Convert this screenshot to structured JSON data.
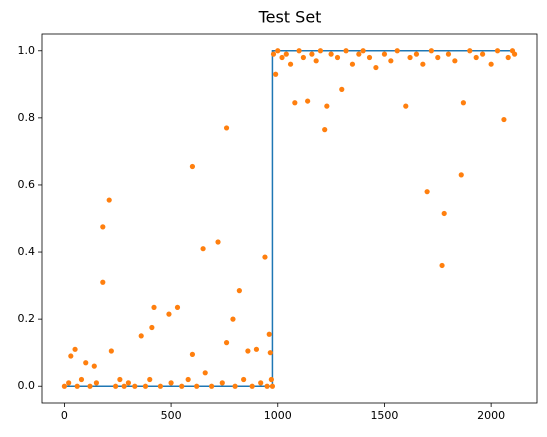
{
  "chart_data": {
    "type": "scatter",
    "title": "Test Set",
    "xlim": [
      -105,
      2215
    ],
    "ylim": [
      -0.05,
      1.05
    ],
    "xticks": [
      0,
      500,
      1000,
      1500,
      2000
    ],
    "yticks": [
      {
        "value": 0,
        "label": "0.0"
      },
      0.2,
      0.4,
      0.6,
      0.8,
      {
        "value": 1,
        "label": "1.0"
      }
    ],
    "line": {
      "color": "#1f77b4",
      "x": [
        0,
        975,
        975,
        2110
      ],
      "values": [
        0,
        0,
        1,
        1
      ]
    },
    "scatter": {
      "color": "#ff7f0e",
      "x": [
        0,
        20,
        30,
        50,
        60,
        80,
        100,
        120,
        140,
        150,
        180,
        180,
        210,
        220,
        240,
        260,
        280,
        300,
        330,
        360,
        380,
        400,
        410,
        420,
        450,
        490,
        500,
        530,
        550,
        580,
        600,
        600,
        620,
        650,
        660,
        690,
        720,
        740,
        760,
        760,
        790,
        800,
        820,
        840,
        860,
        880,
        900,
        920,
        940,
        950,
        960,
        965,
        970,
        975,
        980,
        990,
        1000,
        1020,
        1040,
        1060,
        1080,
        1100,
        1120,
        1140,
        1160,
        1180,
        1200,
        1220,
        1230,
        1250,
        1280,
        1300,
        1320,
        1350,
        1380,
        1400,
        1430,
        1460,
        1500,
        1530,
        1560,
        1600,
        1620,
        1650,
        1680,
        1700,
        1720,
        1750,
        1770,
        1780,
        1800,
        1830,
        1860,
        1870,
        1900,
        1930,
        1960,
        2000,
        2030,
        2060,
        2080,
        2100,
        2110
      ],
      "values": [
        0.0,
        0.01,
        0.09,
        0.11,
        0.0,
        0.02,
        0.07,
        0.0,
        0.06,
        0.01,
        0.31,
        0.475,
        0.555,
        0.105,
        0.0,
        0.02,
        0.0,
        0.01,
        0.0,
        0.15,
        0.0,
        0.02,
        0.175,
        0.235,
        0.0,
        0.215,
        0.01,
        0.235,
        0.0,
        0.02,
        0.655,
        0.095,
        0.0,
        0.41,
        0.04,
        0.0,
        0.43,
        0.01,
        0.77,
        0.13,
        0.2,
        0.0,
        0.285,
        0.02,
        0.105,
        0.0,
        0.11,
        0.01,
        0.385,
        0.0,
        0.155,
        0.1,
        0.02,
        0.0,
        0.99,
        0.93,
        1.0,
        0.98,
        0.99,
        0.96,
        0.845,
        1.0,
        0.98,
        0.85,
        0.99,
        0.97,
        1.0,
        0.765,
        0.835,
        0.99,
        0.98,
        0.885,
        1.0,
        0.96,
        0.99,
        1.0,
        0.98,
        0.95,
        0.99,
        0.97,
        1.0,
        0.835,
        0.98,
        0.99,
        0.96,
        0.58,
        1.0,
        0.98,
        0.36,
        0.515,
        0.99,
        0.97,
        0.63,
        0.845,
        1.0,
        0.98,
        0.99,
        0.96,
        1.0,
        0.795,
        0.98,
        1.0,
        0.99
      ]
    }
  }
}
